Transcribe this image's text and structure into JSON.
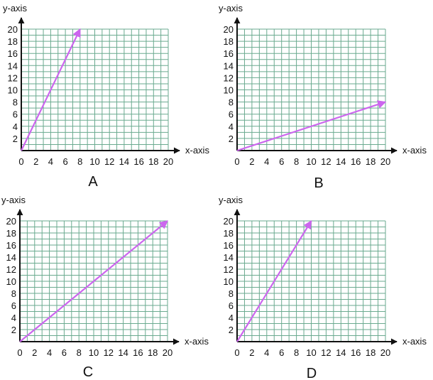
{
  "chart_data": [
    {
      "type": "line",
      "panel_label": "A",
      "xlabel": "x-axis",
      "ylabel": "y-axis",
      "xlim": [
        0,
        20
      ],
      "ylim": [
        0,
        20
      ],
      "x_ticks": [
        "0",
        "2",
        "4",
        "6",
        "8",
        "10",
        "12",
        "14",
        "16",
        "18",
        "20"
      ],
      "y_ticks": [
        "2",
        "4",
        "6",
        "8",
        "10",
        "12",
        "14",
        "16",
        "18",
        "20"
      ],
      "grid": true,
      "series": [
        {
          "x": [
            0,
            8
          ],
          "y": [
            0,
            20
          ],
          "arrow": true
        }
      ]
    },
    {
      "type": "line",
      "panel_label": "B",
      "xlabel": "x-axis",
      "ylabel": "y-axis",
      "xlim": [
        0,
        20
      ],
      "ylim": [
        0,
        20
      ],
      "x_ticks": [
        "0",
        "2",
        "4",
        "6",
        "8",
        "10",
        "12",
        "14",
        "16",
        "18",
        "20"
      ],
      "y_ticks": [
        "2",
        "4",
        "6",
        "8",
        "10",
        "12",
        "14",
        "16",
        "18",
        "20"
      ],
      "grid": true,
      "series": [
        {
          "x": [
            0,
            20
          ],
          "y": [
            0,
            8
          ],
          "arrow": true
        }
      ]
    },
    {
      "type": "line",
      "panel_label": "C",
      "xlabel": "x-axis",
      "ylabel": "y-axis",
      "xlim": [
        0,
        20
      ],
      "ylim": [
        0,
        20
      ],
      "x_ticks": [
        "0",
        "2",
        "4",
        "6",
        "8",
        "10",
        "12",
        "14",
        "16",
        "18",
        "20"
      ],
      "y_ticks": [
        "2",
        "4",
        "6",
        "8",
        "10",
        "12",
        "14",
        "16",
        "18",
        "20"
      ],
      "grid": true,
      "series": [
        {
          "x": [
            0,
            20
          ],
          "y": [
            0,
            20
          ],
          "arrow": true
        }
      ]
    },
    {
      "type": "line",
      "panel_label": "D",
      "xlabel": "x-axis",
      "ylabel": "y-axis",
      "xlim": [
        0,
        20
      ],
      "ylim": [
        0,
        20
      ],
      "x_ticks": [
        "0",
        "2",
        "4",
        "6",
        "8",
        "10",
        "12",
        "14",
        "16",
        "18",
        "20"
      ],
      "y_ticks": [
        "2",
        "4",
        "6",
        "8",
        "10",
        "12",
        "14",
        "16",
        "18",
        "20"
      ],
      "grid": true,
      "series": [
        {
          "x": [
            0,
            10
          ],
          "y": [
            0,
            20
          ],
          "arrow": true
        }
      ]
    }
  ],
  "colors": {
    "grid": "#6aaa8f",
    "axis": "#111111",
    "line": "#cc66ee",
    "text": "#111111"
  }
}
